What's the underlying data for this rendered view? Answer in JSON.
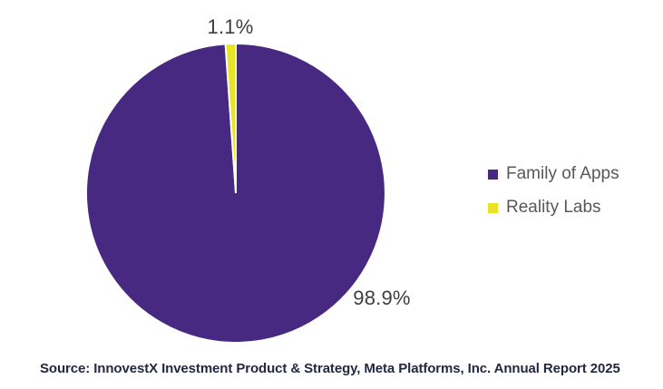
{
  "chart_data": {
    "type": "pie",
    "title": "",
    "series": [
      {
        "name": "Family of Apps",
        "value": 98.9,
        "label": "98.9%",
        "color": "#482982"
      },
      {
        "name": "Reality Labs",
        "value": 1.1,
        "label": "1.1%",
        "color": "#e8e325"
      }
    ],
    "start_angle_deg": 0,
    "direction": "clockwise",
    "legend_position": "right",
    "slice_gap_color": "#ffffff",
    "slice_gap_width": 2
  },
  "legend": {
    "items": [
      {
        "label": "Family of Apps",
        "color": "#482982"
      },
      {
        "label": "Reality Labs",
        "color": "#e8e325"
      }
    ]
  },
  "source": {
    "text": "Source: InnovestX Investment Product & Strategy, Meta Platforms, Inc. Annual Report 2025"
  },
  "colors": {
    "background": "#ffffff",
    "slice_label_text": "#3e3e40",
    "legend_text": "#57585a",
    "source_text": "#232740"
  }
}
